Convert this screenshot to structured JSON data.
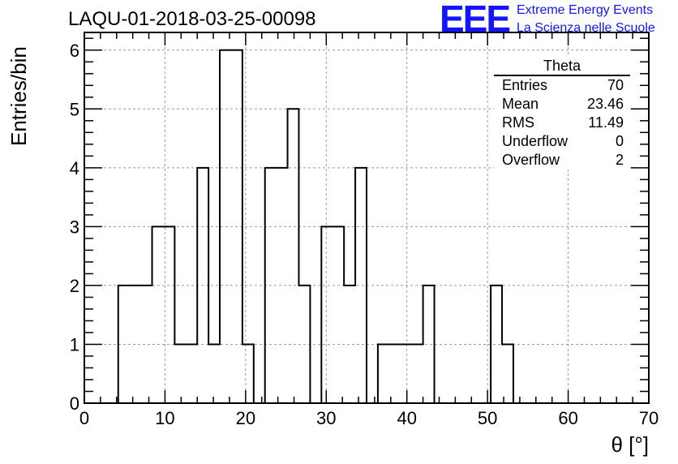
{
  "header": {
    "run_title": "LAQU-01-2018-03-25-00098",
    "logo_text": "EEE",
    "logo_line1": "Extreme Energy Events",
    "logo_line2": "La Scienza nelle Scuole"
  },
  "stats_box": {
    "title": "Theta",
    "rows": [
      {
        "label": "Entries",
        "value": "70"
      },
      {
        "label": "Mean",
        "value": "23.46"
      },
      {
        "label": "RMS",
        "value": "11.49"
      },
      {
        "label": "Underflow",
        "value": "0"
      },
      {
        "label": "Overflow",
        "value": "2"
      }
    ]
  },
  "colors": {
    "logo": "#1414ff",
    "histogram_line": "#000000",
    "grid": "#9a9a9a"
  },
  "chart_data": {
    "type": "bar",
    "histogram": true,
    "title": "LAQU-01-2018-03-25-00098",
    "xlabel": "θ [°]",
    "ylabel": "Entries/bin",
    "xlim": [
      0,
      70
    ],
    "ylim": [
      0,
      6.3
    ],
    "bin_width": 1.4,
    "xticks": [
      0,
      10,
      20,
      30,
      40,
      50,
      60,
      70
    ],
    "yticks": [
      0,
      1,
      2,
      3,
      4,
      5,
      6
    ],
    "grid": true,
    "bins": [
      {
        "low": 0.0,
        "count": 0
      },
      {
        "low": 1.4,
        "count": 0
      },
      {
        "low": 2.8,
        "count": 0
      },
      {
        "low": 4.2,
        "count": 2
      },
      {
        "low": 5.6,
        "count": 2
      },
      {
        "low": 7.0,
        "count": 2
      },
      {
        "low": 8.4,
        "count": 3
      },
      {
        "low": 9.8,
        "count": 3
      },
      {
        "low": 11.2,
        "count": 1
      },
      {
        "low": 12.6,
        "count": 1
      },
      {
        "low": 14.0,
        "count": 4
      },
      {
        "low": 15.4,
        "count": 1
      },
      {
        "low": 16.8,
        "count": 6
      },
      {
        "low": 18.2,
        "count": 6
      },
      {
        "low": 19.6,
        "count": 1
      },
      {
        "low": 21.0,
        "count": 0
      },
      {
        "low": 22.4,
        "count": 4
      },
      {
        "low": 23.8,
        "count": 4
      },
      {
        "low": 25.2,
        "count": 5
      },
      {
        "low": 26.6,
        "count": 2
      },
      {
        "low": 28.0,
        "count": 0
      },
      {
        "low": 29.4,
        "count": 3
      },
      {
        "low": 30.8,
        "count": 3
      },
      {
        "low": 32.2,
        "count": 2
      },
      {
        "low": 33.6,
        "count": 4
      },
      {
        "low": 35.0,
        "count": 0
      },
      {
        "low": 36.4,
        "count": 1
      },
      {
        "low": 37.8,
        "count": 1
      },
      {
        "low": 39.2,
        "count": 1
      },
      {
        "low": 40.6,
        "count": 1
      },
      {
        "low": 42.0,
        "count": 2
      },
      {
        "low": 43.4,
        "count": 0
      },
      {
        "low": 44.8,
        "count": 0
      },
      {
        "low": 46.2,
        "count": 0
      },
      {
        "low": 47.6,
        "count": 0
      },
      {
        "low": 49.0,
        "count": 0
      },
      {
        "low": 50.4,
        "count": 2
      },
      {
        "low": 51.8,
        "count": 1
      },
      {
        "low": 53.2,
        "count": 0
      }
    ]
  }
}
